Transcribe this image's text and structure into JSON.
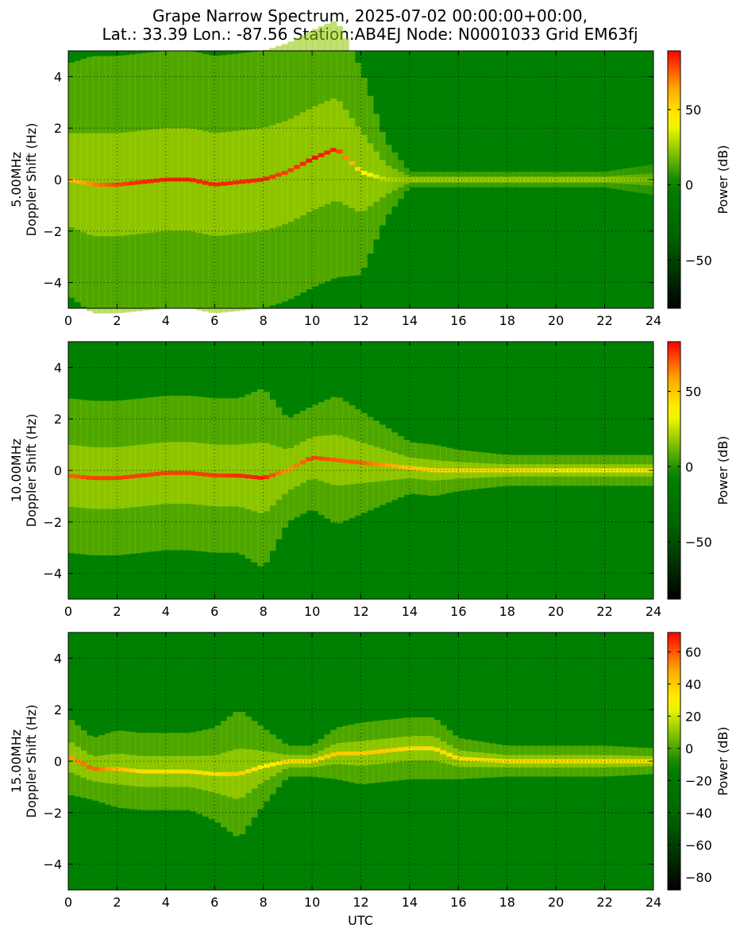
{
  "title_line1": "Grape Narrow Spectrum, 2025-07-02 00:00:00+00:00,",
  "title_line2": "Lat.: 33.39 Lon.: -87.56 Station:AB4EJ Node: N0001033 Grid EM63fj",
  "colors": {
    "stops": [
      "#000000",
      "#006400",
      "#008000",
      "#ffff00",
      "#ffa500",
      "#ff0000"
    ],
    "noise_floor": "#008000",
    "high_power": "#ff2a00"
  },
  "chart_data": [
    {
      "type": "heatmap",
      "frequency": "5.00MHz",
      "ylabel": "Doppler Shift (Hz)",
      "xlabel": "",
      "xlim": [
        0,
        24
      ],
      "ylim": [
        -5,
        5
      ],
      "x_ticks": [
        0,
        2,
        4,
        6,
        8,
        10,
        12,
        14,
        16,
        18,
        20,
        22,
        24
      ],
      "y_ticks": [
        -4,
        -2,
        0,
        2,
        4
      ],
      "grid": true,
      "colorbar": {
        "label": "Power (dB)",
        "range": [
          -82,
          89
        ],
        "ticks": [
          -50,
          0,
          50
        ]
      },
      "profile": {
        "x": [
          0,
          1,
          2,
          3,
          4,
          5,
          6,
          7,
          8,
          9,
          10,
          11,
          12,
          13,
          14,
          15,
          16,
          18,
          20,
          22,
          24
        ],
        "spread_hz": [
          4.5,
          5,
          5,
          5,
          5,
          5,
          5,
          5,
          5,
          5,
          5,
          5,
          4,
          1.5,
          0.3,
          0.3,
          0.3,
          0.3,
          0.3,
          0.3,
          0.6
        ],
        "peak_db": [
          55,
          70,
          80,
          85,
          85,
          85,
          85,
          85,
          85,
          80,
          88,
          85,
          45,
          30,
          25,
          25,
          25,
          25,
          25,
          25,
          20
        ],
        "centre_hz": [
          0,
          -0.2,
          -0.2,
          -0.1,
          0,
          0,
          -0.2,
          -0.1,
          0,
          0.3,
          0.8,
          1.2,
          0.3,
          0,
          0,
          0,
          0,
          0,
          0,
          0,
          0
        ]
      }
    },
    {
      "type": "heatmap",
      "frequency": "10.00MHz",
      "ylabel": "Doppler Shift (Hz)",
      "xlabel": "",
      "xlim": [
        0,
        24
      ],
      "ylim": [
        -5,
        5
      ],
      "x_ticks": [
        0,
        2,
        4,
        6,
        8,
        10,
        12,
        14,
        16,
        18,
        20,
        22,
        24
      ],
      "y_ticks": [
        -4,
        -2,
        0,
        2,
        4
      ],
      "grid": true,
      "colorbar": {
        "label": "Power (dB)",
        "range": [
          -88,
          83
        ],
        "ticks": [
          -50,
          0,
          50
        ]
      },
      "profile": {
        "x": [
          0,
          1,
          2,
          3,
          4,
          5,
          6,
          7,
          8,
          9,
          10,
          11,
          12,
          13,
          14,
          15,
          16,
          18,
          20,
          22,
          24
        ],
        "spread_hz": [
          3,
          3,
          3,
          3,
          3,
          3,
          3,
          3,
          3.5,
          2,
          2,
          2.5,
          2,
          1.5,
          1,
          1,
          0.8,
          0.6,
          0.6,
          0.6,
          0.6
        ],
        "peak_db": [
          70,
          75,
          75,
          75,
          75,
          75,
          75,
          78,
          80,
          60,
          75,
          70,
          70,
          60,
          50,
          45,
          45,
          45,
          40,
          40,
          40
        ],
        "centre_hz": [
          -0.2,
          -0.3,
          -0.3,
          -0.2,
          -0.1,
          -0.1,
          -0.2,
          -0.2,
          -0.3,
          0,
          0.5,
          0.4,
          0.3,
          0.2,
          0.1,
          0,
          0,
          0,
          0,
          0,
          0
        ]
      }
    },
    {
      "type": "heatmap",
      "frequency": "15.00MHz",
      "ylabel": "Doppler Shift (Hz)",
      "xlabel": "UTC",
      "xlim": [
        0,
        24
      ],
      "ylim": [
        -5,
        5
      ],
      "x_ticks": [
        0,
        2,
        4,
        6,
        8,
        10,
        12,
        14,
        16,
        18,
        20,
        22,
        24
      ],
      "y_ticks": [
        -4,
        -2,
        0,
        2,
        4
      ],
      "grid": true,
      "colorbar": {
        "label": "Power (dB)",
        "range": [
          -88,
          72
        ],
        "ticks": [
          -80,
          -60,
          -40,
          -20,
          0,
          20,
          40,
          60
        ]
      },
      "profile": {
        "x": [
          0,
          1,
          2,
          3,
          4,
          5,
          6,
          7,
          8,
          9,
          10,
          11,
          12,
          13,
          14,
          15,
          16,
          18,
          20,
          22,
          24
        ],
        "spread_hz": [
          1.5,
          1.2,
          1.5,
          1.5,
          1.5,
          1.5,
          1.8,
          2.5,
          1.5,
          0.6,
          0.6,
          1,
          1.2,
          1.2,
          1.2,
          1.2,
          0.8,
          0.6,
          0.6,
          0.6,
          0.5
        ],
        "peak_db": [
          50,
          60,
          45,
          35,
          35,
          35,
          35,
          40,
          30,
          35,
          35,
          40,
          40,
          40,
          35,
          35,
          35,
          35,
          35,
          35,
          35
        ],
        "centre_hz": [
          0.2,
          -0.3,
          -0.3,
          -0.4,
          -0.4,
          -0.4,
          -0.5,
          -0.5,
          -0.2,
          0,
          0,
          0.3,
          0.3,
          0.4,
          0.5,
          0.5,
          0.1,
          0,
          0,
          0,
          0
        ]
      }
    }
  ]
}
